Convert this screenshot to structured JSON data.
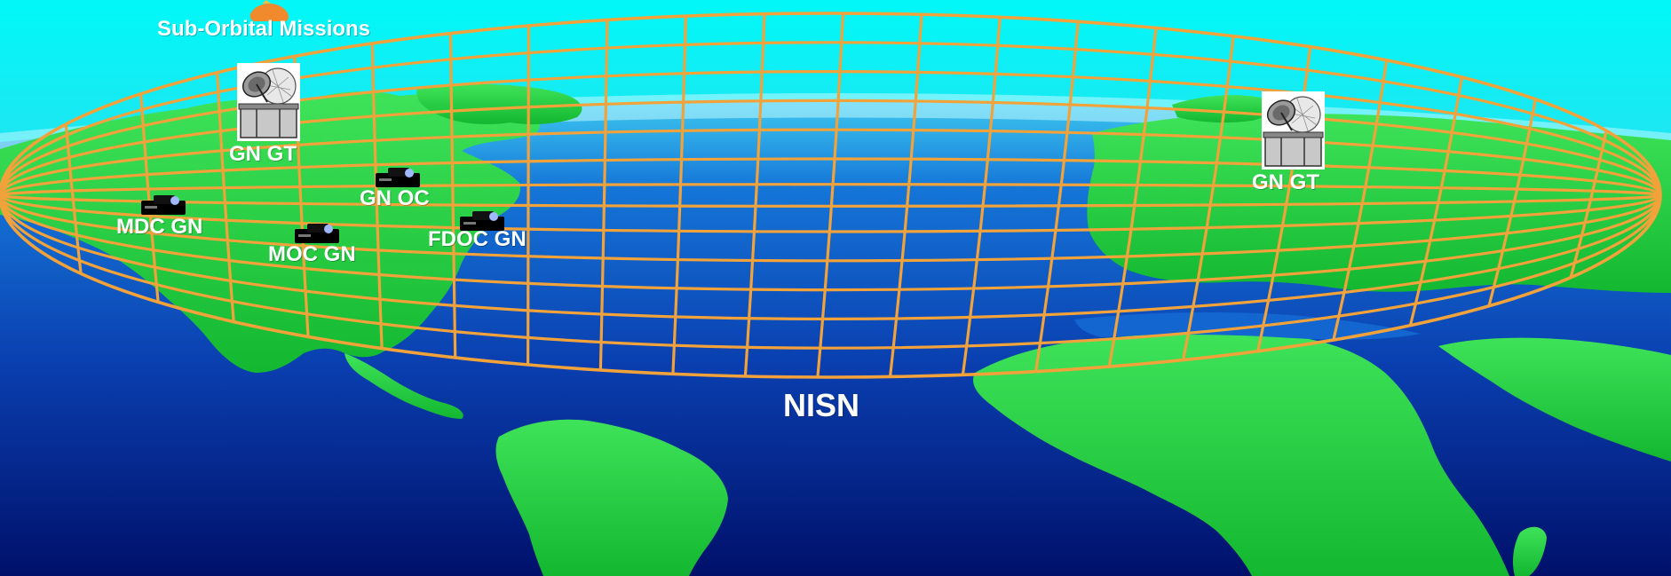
{
  "title_label": "Sub-Orbital Missions",
  "network_label": "NISN",
  "ground_terminals": [
    {
      "name": "ground-terminal-west",
      "label": "GN GT"
    },
    {
      "name": "ground-terminal-east",
      "label": "GN GT"
    }
  ],
  "control_centers": [
    {
      "name": "mdc-gn",
      "label": "MDC GN"
    },
    {
      "name": "moc-gn",
      "label": "MOC GN"
    },
    {
      "name": "gn-oc",
      "label": "GN OC"
    },
    {
      "name": "fdoc-gn",
      "label": "FDOC GN"
    }
  ],
  "icons": {
    "satellite_dish": "satellite-dish-icon",
    "workstation": "workstation-icon",
    "mission": "sub-orbital-mission-icon"
  },
  "colors": {
    "sky": "#00f4f4",
    "ocean_top": "#1aa6e8",
    "ocean_bottom": "#00106a",
    "land": "#18cc3a",
    "grid": "#f2a23a",
    "label": "#ffffff"
  }
}
